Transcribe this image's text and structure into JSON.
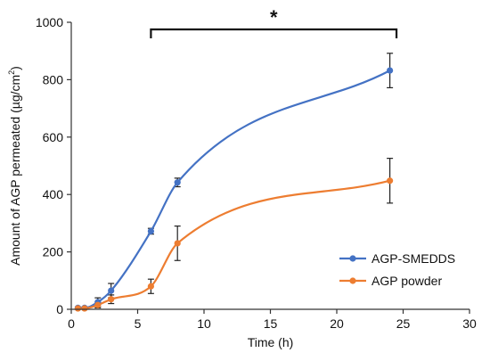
{
  "chart_data": {
    "type": "line",
    "xlabel": "Time (h)",
    "ylabel": "Amount of AGP permeated (µg/cm²)",
    "ylabel_main": "Amount of AGP permeated (µg/cm",
    "ylabel_sup": "2",
    "ylabel_end": ")",
    "xlim": [
      0,
      30
    ],
    "ylim": [
      0,
      1000
    ],
    "xticks": [
      0,
      5,
      10,
      15,
      20,
      25,
      30
    ],
    "yticks": [
      0,
      200,
      400,
      600,
      800,
      1000
    ],
    "grid": false,
    "legend_position": "bottom-right",
    "significance": {
      "label": "*",
      "x_start": 6,
      "x_end": 24.5
    },
    "series": [
      {
        "name": "AGP-SMEDDS",
        "color": "#4472C4",
        "x": [
          0.5,
          1,
          2,
          3,
          6,
          8,
          24
        ],
        "y": [
          5,
          5,
          25,
          65,
          272,
          442,
          832
        ],
        "err": [
          3,
          3,
          15,
          25,
          10,
          15,
          60
        ]
      },
      {
        "name": "AGP powder",
        "color": "#ED7D31",
        "x": [
          0.5,
          1,
          2,
          3,
          6,
          8,
          24
        ],
        "y": [
          3,
          3,
          15,
          35,
          80,
          230,
          448
        ],
        "err": [
          2,
          2,
          10,
          15,
          25,
          60,
          78
        ]
      }
    ]
  }
}
